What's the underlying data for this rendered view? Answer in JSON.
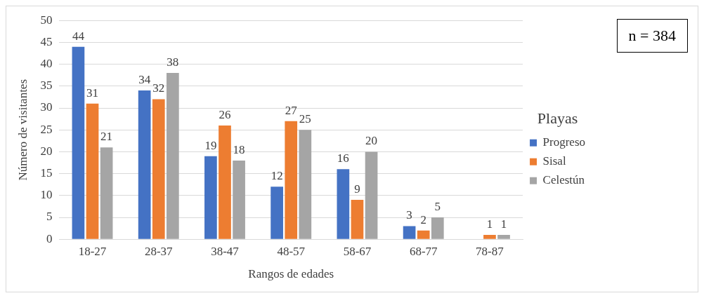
{
  "chart_data": {
    "type": "bar",
    "xlabel": "Rangos de edades",
    "ylabel": "Número de visitantes",
    "legend_title": "Playas",
    "annotations": [
      "n = 384"
    ],
    "categories": [
      "18-27",
      "28-37",
      "38-47",
      "48-57",
      "58-67",
      "68-77",
      "78-87"
    ],
    "series": [
      {
        "name": "Progreso",
        "color": "#4472c4",
        "values": [
          44,
          34,
          19,
          12,
          16,
          3,
          null
        ]
      },
      {
        "name": "Sisal",
        "color": "#ed7d31",
        "values": [
          31,
          32,
          26,
          27,
          9,
          2,
          1
        ]
      },
      {
        "name": "Celestún",
        "color": "#a5a5a5",
        "values": [
          21,
          38,
          18,
          25,
          20,
          5,
          1
        ]
      }
    ],
    "ylim": [
      0,
      50
    ],
    "yticks": [
      0,
      5,
      10,
      15,
      20,
      25,
      30,
      35,
      40,
      45,
      50
    ],
    "grid": "y",
    "legend": "right",
    "data_labels": true
  }
}
